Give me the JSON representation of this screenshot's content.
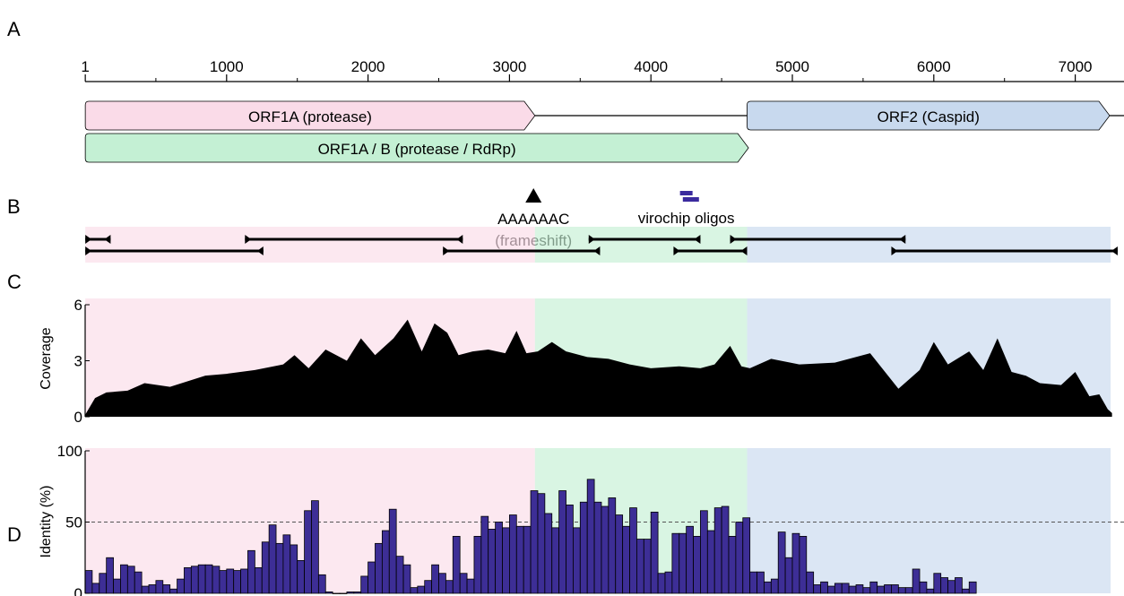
{
  "figure": {
    "panel_labels": [
      "A",
      "B",
      "C",
      "D"
    ]
  },
  "colors": {
    "orf1a": "#fadbe8",
    "orf1ab": "#c4f0d4",
    "orf2": "#c8d9ee",
    "bar": "#3d2e96",
    "oligo": "#3a2a9e"
  },
  "chart_data": [
    {
      "type": "genome_map",
      "genome_length": 7300,
      "ticks": [
        1,
        1000,
        2000,
        3000,
        4000,
        5000,
        6000,
        7000
      ],
      "minor_ticks": [
        500,
        1500,
        2500,
        3500,
        4500,
        5500,
        6500
      ],
      "genes": [
        {
          "label": "ORF1A (protease)",
          "start": 1,
          "end": 3180,
          "row": 0,
          "color_key": "orf1a"
        },
        {
          "label": "ORF2 (Caspid)",
          "start": 4680,
          "end": 7300,
          "row": 0,
          "color_key": "orf2"
        },
        {
          "label": "ORF1A / B (protease / RdRp)",
          "start": 1,
          "end": 4690,
          "row": 1,
          "color_key": "orf1ab"
        }
      ],
      "frameshift": {
        "position": 3170,
        "label_line1": "AAAAAAC",
        "label_line2": "(frameshift)"
      },
      "oligos": {
        "positions": [
          4250,
          4270
        ],
        "label": "virochip oligos"
      }
    },
    {
      "type": "primer_map",
      "regions": [
        {
          "start": 1,
          "end": 3180,
          "color_key": "orf1a"
        },
        {
          "start": 3180,
          "end": 4680,
          "color_key": "orf1ab"
        },
        {
          "start": 4680,
          "end": 7250,
          "color_key": "orf2"
        }
      ],
      "amplicons": [
        {
          "start": 1,
          "end": 180,
          "row": 0
        },
        {
          "start": 1130,
          "end": 2670,
          "row": 0
        },
        {
          "start": 3560,
          "end": 4350,
          "row": 0
        },
        {
          "start": 4560,
          "end": 5800,
          "row": 0
        },
        {
          "start": 1,
          "end": 1260,
          "row": 1
        },
        {
          "start": 2530,
          "end": 3640,
          "row": 1
        },
        {
          "start": 4160,
          "end": 4680,
          "row": 1
        },
        {
          "start": 5700,
          "end": 7300,
          "row": 1
        }
      ]
    },
    {
      "type": "area",
      "ylabel": "Coverage",
      "ylim": [
        0,
        6
      ],
      "yticks": [
        0,
        3,
        6
      ],
      "x": [
        0,
        70,
        150,
        300,
        420,
        600,
        850,
        1000,
        1200,
        1400,
        1480,
        1580,
        1700,
        1850,
        1950,
        2050,
        2180,
        2280,
        2380,
        2470,
        2560,
        2640,
        2740,
        2850,
        2970,
        3050,
        3120,
        3200,
        3300,
        3400,
        3550,
        3700,
        3850,
        4000,
        4200,
        4350,
        4450,
        4560,
        4640,
        4700,
        4850,
        5050,
        5300,
        5550,
        5750,
        5900,
        6000,
        6100,
        6250,
        6350,
        6450,
        6550,
        6650,
        6750,
        6900,
        7000,
        7100,
        7170,
        7230,
        7260
      ],
      "values": [
        0.1,
        1.0,
        1.3,
        1.4,
        1.8,
        1.6,
        2.2,
        2.3,
        2.5,
        2.8,
        3.3,
        2.6,
        3.6,
        3.0,
        4.2,
        3.3,
        4.2,
        5.2,
        3.5,
        5.0,
        4.5,
        3.3,
        3.5,
        3.6,
        3.4,
        4.6,
        3.4,
        3.5,
        4.0,
        3.5,
        3.2,
        3.1,
        2.8,
        2.6,
        2.7,
        2.6,
        2.8,
        3.8,
        2.7,
        2.6,
        3.1,
        2.8,
        2.9,
        3.4,
        1.5,
        2.5,
        4.0,
        2.8,
        3.5,
        2.5,
        4.2,
        2.4,
        2.2,
        1.8,
        1.7,
        2.4,
        1.1,
        1.2,
        0.4,
        0.2
      ]
    },
    {
      "type": "bar",
      "ylabel": "Identity (%)",
      "ylim": [
        0,
        100
      ],
      "yticks": [
        0,
        50,
        100
      ],
      "reference_line": 50,
      "x_start": 0,
      "bin_width": 50,
      "values": [
        16,
        7,
        14,
        25,
        10,
        20,
        19,
        15,
        5,
        6,
        9,
        6,
        3,
        10,
        18,
        19,
        20,
        20,
        19,
        16,
        17,
        16,
        17,
        30,
        18,
        36,
        48,
        35,
        41,
        34,
        23,
        58,
        65,
        13,
        1,
        0,
        0,
        1,
        1,
        12,
        22,
        35,
        44,
        59,
        26,
        20,
        4,
        5,
        9,
        20,
        14,
        9,
        40,
        14,
        10,
        40,
        54,
        45,
        50,
        46,
        55,
        47,
        47,
        72,
        70,
        56,
        46,
        72,
        62,
        46,
        64,
        80,
        64,
        61,
        67,
        55,
        47,
        60,
        38,
        38,
        57,
        14,
        15,
        42,
        42,
        47,
        40,
        58,
        44,
        60,
        61,
        40,
        50,
        53,
        15,
        15,
        8,
        10,
        43,
        25,
        42,
        40,
        15,
        6,
        8,
        5,
        7,
        7,
        5,
        6,
        4,
        8,
        5,
        6,
        6,
        4,
        4,
        17,
        8,
        3,
        14,
        11,
        9,
        11,
        3,
        8
      ]
    }
  ]
}
